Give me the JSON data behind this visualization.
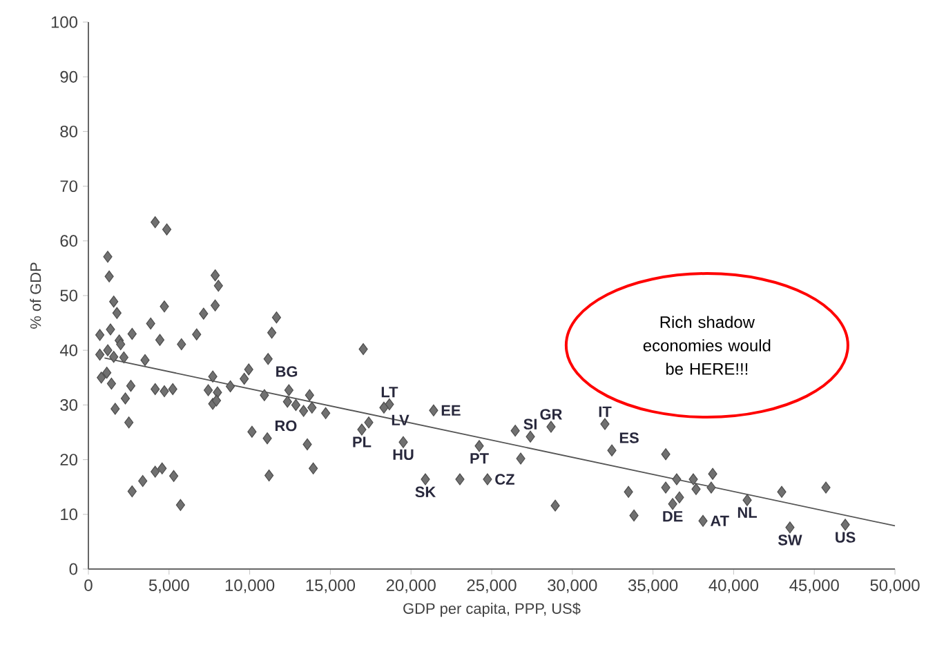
{
  "chart_data": {
    "type": "scatter",
    "xlabel": "GDP per capita, PPP, US$",
    "ylabel": "% of GDP",
    "marker": "diamond",
    "xlim": [
      0,
      50000
    ],
    "ylim": [
      0,
      100
    ],
    "xticks": [
      0,
      {
        "value": 5000,
        "label": "5,000"
      },
      {
        "value": 10000,
        "label": "10,000"
      },
      {
        "value": 15000,
        "label": "15,000"
      },
      {
        "value": 20000,
        "label": "20,000"
      },
      {
        "value": 25000,
        "label": "25,000"
      },
      {
        "value": 30000,
        "label": "30,000"
      },
      {
        "value": 35000,
        "label": "35,000"
      },
      {
        "value": 40000,
        "label": "40,000"
      },
      {
        "value": 45000,
        "label": "45,000"
      },
      {
        "value": 50000,
        "label": "50,000"
      }
    ],
    "yticks": [
      0,
      10,
      20,
      30,
      40,
      50,
      60,
      70,
      80,
      90,
      100
    ],
    "series": [
      {
        "color": "#707070",
        "x": [
          4140,
          4860,
          1200,
          1290,
          7860,
          8060,
          1570,
          1770,
          4710,
          7860,
          11660,
          7140,
          3860,
          710,
          1370,
          1910,
          2710,
          4430,
          5770,
          6710,
          11370,
          710,
          1200,
          2000,
          1570,
          2200,
          3510,
          11140,
          800,
          1140,
          1430,
          2630,
          4140,
          4710,
          5230,
          7710,
          9940,
          9660,
          7430,
          8000,
          8800,
          7710,
          7940,
          10910,
          12430,
          13710,
          12340,
          12860,
          13340,
          13860,
          14710,
          1660,
          2290,
          2510,
          10140,
          11090,
          13570,
          2710,
          3370,
          4140,
          4570,
          5290,
          5710,
          11200,
          13940,
          17040,
          18660,
          18320,
          17380,
          16950,
          19520,
          21400,
          20890,
          23030,
          24230,
          24740,
          26460,
          27400,
          28680,
          26800,
          28940,
          32020,
          32450,
          35790,
          33480,
          33820,
          36470,
          37500,
          38700,
          35790,
          37670,
          38610,
          36640,
          36220,
          38100,
          40840,
          42980,
          45720,
          43490,
          46920
        ],
        "values": [
          63.4,
          62.1,
          57.1,
          53.5,
          53.7,
          51.8,
          48.9,
          46.8,
          48.0,
          48.2,
          46.0,
          46.7,
          44.9,
          42.8,
          43.8,
          41.8,
          43.0,
          41.9,
          41.1,
          42.9,
          43.2,
          39.2,
          40.0,
          41.1,
          38.8,
          38.7,
          38.2,
          38.4,
          35.0,
          35.9,
          33.9,
          33.5,
          32.9,
          32.5,
          32.9,
          35.2,
          36.5,
          34.8,
          32.7,
          32.3,
          33.4,
          30.2,
          30.8,
          31.8,
          32.7,
          31.8,
          30.6,
          30.0,
          28.9,
          29.5,
          28.5,
          29.3,
          31.2,
          26.8,
          25.1,
          23.9,
          22.8,
          14.2,
          16.1,
          17.8,
          18.4,
          17.0,
          11.7,
          17.1,
          18.4,
          40.2,
          30.1,
          29.5,
          26.8,
          25.5,
          23.2,
          29.0,
          16.4,
          16.4,
          22.5,
          16.4,
          25.3,
          24.2,
          26.0,
          20.2,
          11.6,
          26.5,
          21.7,
          21.0,
          14.1,
          9.8,
          16.4,
          16.4,
          17.4,
          14.9,
          14.6,
          14.9,
          13.1,
          11.9,
          8.8,
          12.6,
          14.1,
          14.9,
          7.6,
          8.1
        ]
      },
      {
        "type": "line",
        "marker": "none",
        "color": "#555555",
        "x": [
          1000,
          50000
        ],
        "values": [
          38.6,
          7.9
        ]
      }
    ],
    "annotations": [
      {
        "text": "BG",
        "x": 11140,
        "y": 38.4
      },
      {
        "text": "RO",
        "x": 11090,
        "y": 23.9
      },
      {
        "text": "LT",
        "x": 18660,
        "y": 30.1
      },
      {
        "text": "LV",
        "x": 18320,
        "y": 29.5
      },
      {
        "text": "PL",
        "x": 16950,
        "y": 25.5
      },
      {
        "text": "HU",
        "x": 19520,
        "y": 23.2
      },
      {
        "text": "SK",
        "x": 20890,
        "y": 16.4
      },
      {
        "text": "EE",
        "x": 21400,
        "y": 29.0
      },
      {
        "text": "PT",
        "x": 24230,
        "y": 22.5
      },
      {
        "text": "CZ",
        "x": 24740,
        "y": 16.4
      },
      {
        "text": "SI",
        "x": 27400,
        "y": 24.2
      },
      {
        "text": "GR",
        "x": 28680,
        "y": 26.0
      },
      {
        "text": "IT",
        "x": 32020,
        "y": 26.5
      },
      {
        "text": "ES",
        "x": 32450,
        "y": 21.7
      },
      {
        "text": "DE",
        "x": 36220,
        "y": 11.9
      },
      {
        "text": "AT",
        "x": 38100,
        "y": 8.8
      },
      {
        "text": "NL",
        "x": 40840,
        "y": 12.6
      },
      {
        "text": "SW",
        "x": 43490,
        "y": 7.6
      },
      {
        "text": "US",
        "x": 46920,
        "y": 8.1
      },
      "Rich shadow economies would be HERE!!!"
    ]
  }
}
